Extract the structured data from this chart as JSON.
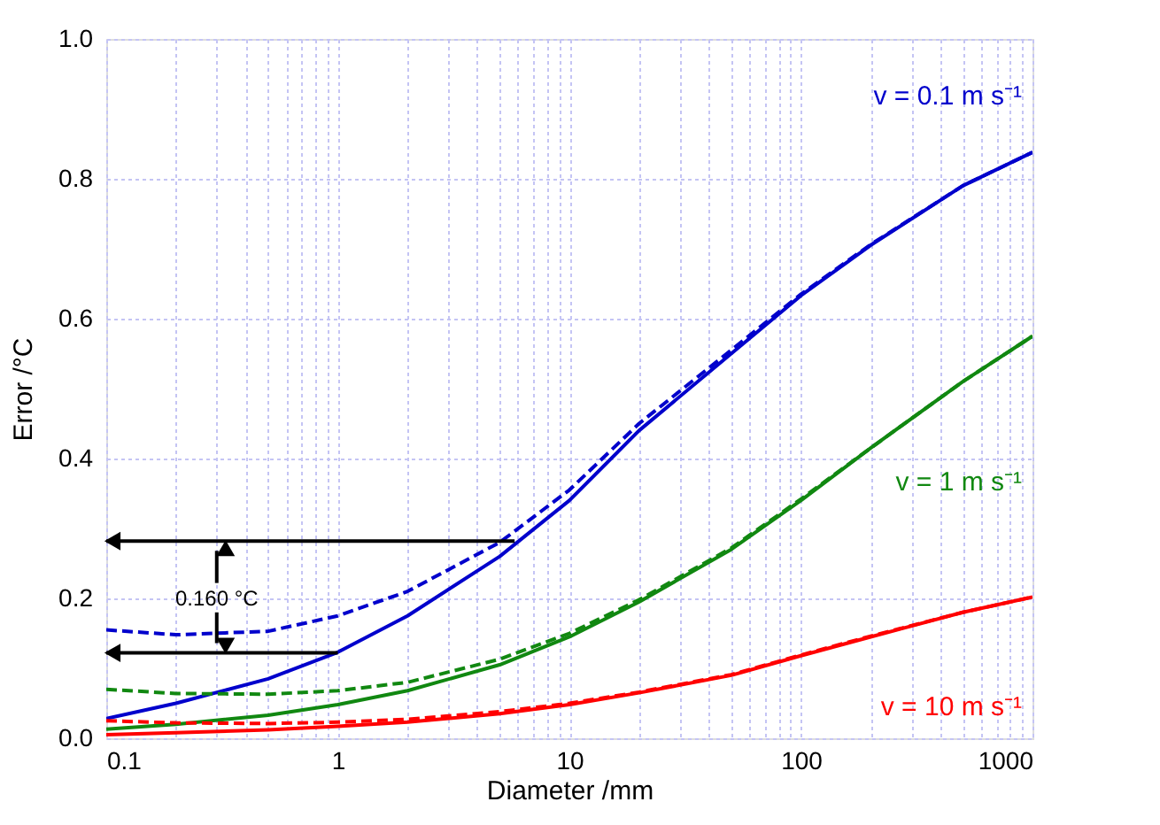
{
  "chart_data": {
    "type": "line",
    "xlabel": "Diameter /mm",
    "ylabel": "Error /°C",
    "x": [
      0.1,
      0.2,
      0.5,
      1,
      2,
      5,
      10,
      20,
      50,
      100,
      200,
      500,
      1000
    ],
    "series": [
      {
        "color": "#0000cc",
        "line_style": "solid",
        "values": [
          0.028,
          0.05,
          0.085,
          0.123,
          0.175,
          0.26,
          0.34,
          0.44,
          0.55,
          0.633,
          0.705,
          0.79,
          0.838
        ]
      },
      {
        "color": "#0000cc",
        "line_style": "dashed",
        "values": [
          0.155,
          0.148,
          0.153,
          0.175,
          0.21,
          0.28,
          0.355,
          0.45,
          0.555,
          0.635,
          0.706,
          0.79,
          0.838
        ]
      },
      {
        "color": "#118811",
        "line_style": "solid",
        "values": [
          0.013,
          0.02,
          0.033,
          0.048,
          0.068,
          0.105,
          0.145,
          0.195,
          0.27,
          0.34,
          0.415,
          0.51,
          0.575
        ]
      },
      {
        "color": "#118811",
        "line_style": "dashed",
        "values": [
          0.07,
          0.064,
          0.063,
          0.068,
          0.08,
          0.113,
          0.15,
          0.198,
          0.272,
          0.342,
          0.415,
          0.51,
          0.575
        ]
      },
      {
        "color": "#ff0000",
        "line_style": "solid",
        "values": [
          0.005,
          0.008,
          0.012,
          0.017,
          0.023,
          0.035,
          0.048,
          0.065,
          0.09,
          0.118,
          0.145,
          0.18,
          0.202
        ]
      },
      {
        "color": "#ff0000",
        "line_style": "dashed",
        "values": [
          0.025,
          0.022,
          0.021,
          0.023,
          0.027,
          0.038,
          0.05,
          0.066,
          0.091,
          0.119,
          0.146,
          0.18,
          0.202
        ]
      }
    ],
    "annotations": [
      "v = 0.1 m s⁻¹",
      "v = 1 m s⁻¹",
      "v = 10 m s⁻¹",
      "0.160 °C"
    ],
    "log": "x",
    "xlim": [
      0.1,
      1000
    ],
    "ylim": [
      0,
      1.0
    ],
    "xticks": [
      0.1,
      {
        "value": 0.2,
        "label": null
      },
      {
        "value": 0.3,
        "label": null
      },
      {
        "value": 0.4,
        "label": null
      },
      {
        "value": 0.5,
        "label": null
      },
      {
        "value": 0.6,
        "label": null
      },
      {
        "value": 0.7,
        "label": null
      },
      {
        "value": 0.8,
        "label": null
      },
      {
        "value": 0.9,
        "label": null
      },
      1,
      {
        "value": 2,
        "label": null
      },
      {
        "value": 3,
        "label": null
      },
      {
        "value": 4,
        "label": null
      },
      {
        "value": 5,
        "label": null
      },
      {
        "value": 6,
        "label": null
      },
      {
        "value": 7,
        "label": null
      },
      {
        "value": 8,
        "label": null
      },
      {
        "value": 9,
        "label": null
      },
      10,
      {
        "value": 20,
        "label": null
      },
      {
        "value": 30,
        "label": null
      },
      {
        "value": 40,
        "label": null
      },
      {
        "value": 50,
        "label": null
      },
      {
        "value": 60,
        "label": null
      },
      {
        "value": 70,
        "label": null
      },
      {
        "value": 80,
        "label": null
      },
      {
        "value": 90,
        "label": null
      },
      100,
      {
        "value": 200,
        "label": null
      },
      {
        "value": 300,
        "label": null
      },
      {
        "value": 400,
        "label": null
      },
      {
        "value": 500,
        "label": null
      },
      {
        "value": 600,
        "label": null
      },
      {
        "value": 700,
        "label": null
      },
      {
        "value": 800,
        "label": null
      },
      {
        "value": 900,
        "label": null
      },
      1000
    ],
    "yticks": [
      {
        "value": 0,
        "label": "0.0"
      },
      0.2,
      0.4,
      0.6,
      0.8,
      {
        "value": 1.0,
        "label": "1.0"
      }
    ],
    "grid": true
  }
}
